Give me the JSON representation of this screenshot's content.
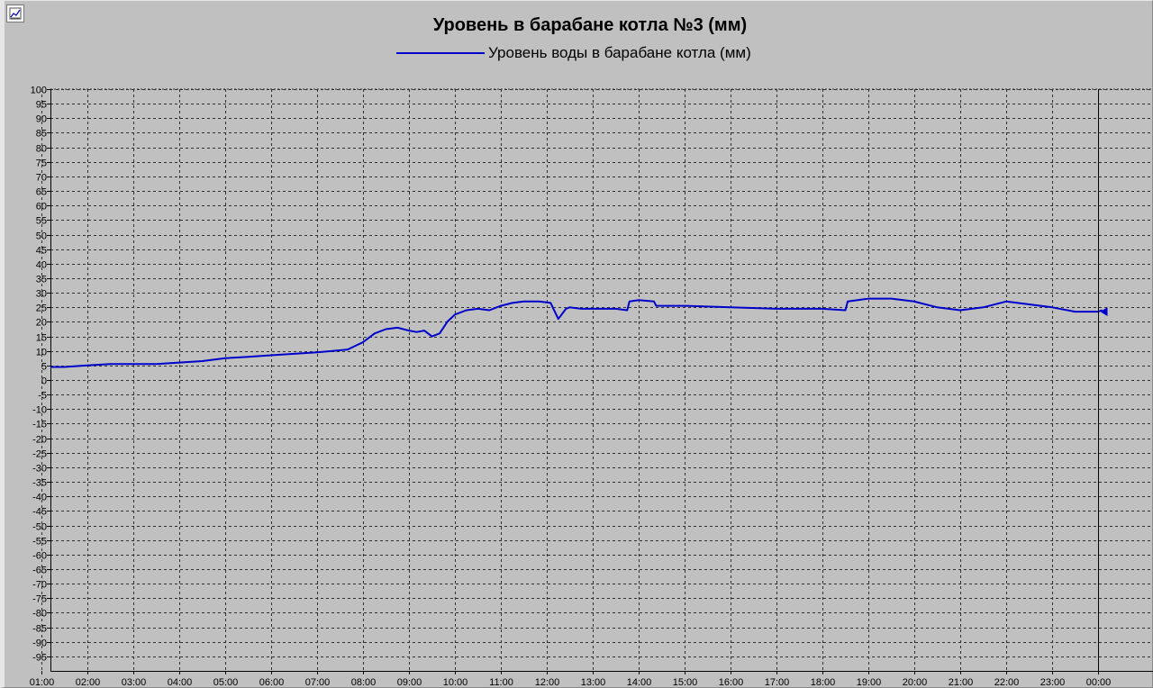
{
  "chart_data": {
    "type": "line",
    "title": "Уровень в барабане котла №3 (мм)",
    "legend": [
      "Уровень воды в барабане котла (мм)"
    ],
    "xlabel": "",
    "ylabel": "",
    "xlim": [
      "01:13",
      "01:00"
    ],
    "ylim": [
      -100,
      100
    ],
    "yticks": [
      100,
      95,
      90,
      85,
      80,
      75,
      70,
      65,
      60,
      55,
      50,
      45,
      40,
      35,
      30,
      25,
      20,
      15,
      10,
      5,
      0,
      -5,
      -10,
      -15,
      -20,
      -25,
      -30,
      -35,
      -40,
      -45,
      -50,
      -55,
      -60,
      -65,
      -70,
      -75,
      -80,
      -85,
      -90,
      -95
    ],
    "xticks": [
      "02:00",
      "03:00",
      "04:00",
      "05:00",
      "06:00",
      "07:00",
      "08:00",
      "09:00",
      "10:00",
      "11:00",
      "12:00",
      "13:00",
      "14:00",
      "15:00",
      "16:00",
      "17:00",
      "18:00",
      "19:00",
      "20:00",
      "21:00",
      "22:00",
      "23:00",
      "00:00",
      "01:00"
    ],
    "grid": true,
    "cursor_time": "00:00",
    "cursor_value": 23.5,
    "series": [
      {
        "name": "Уровень воды в барабане котла (мм)",
        "color": "#0000cc",
        "x": [
          "01:13",
          "01:30",
          "02:00",
          "02:30",
          "03:00",
          "03:30",
          "04:00",
          "04:30",
          "05:00",
          "05:30",
          "06:00",
          "06:30",
          "07:00",
          "07:20",
          "07:40",
          "08:00",
          "08:15",
          "08:30",
          "08:45",
          "09:00",
          "09:10",
          "09:20",
          "09:30",
          "09:40",
          "09:50",
          "10:00",
          "10:15",
          "10:30",
          "10:45",
          "11:00",
          "11:15",
          "11:30",
          "11:50",
          "12:05",
          "12:15",
          "12:25",
          "12:30",
          "12:45",
          "13:00",
          "13:30",
          "13:45",
          "13:48",
          "14:00",
          "14:20",
          "14:23",
          "15:00",
          "16:00",
          "17:00",
          "17:30",
          "18:00",
          "18:30",
          "18:33",
          "19:00",
          "19:30",
          "20:00",
          "20:30",
          "21:00",
          "21:30",
          "22:00",
          "22:30",
          "23:00",
          "23:30",
          "00:00",
          "00:05"
        ],
        "values": [
          4.5,
          4.5,
          5,
          5.5,
          5.5,
          5.5,
          6,
          6.5,
          7.5,
          8,
          8.5,
          9,
          9.5,
          10,
          10.5,
          13,
          16,
          17.5,
          18,
          17,
          16.5,
          17,
          15,
          16,
          20,
          22.5,
          24,
          24.5,
          24,
          25.5,
          26.5,
          27,
          27,
          26.5,
          21,
          24.5,
          25,
          24.5,
          24.5,
          24.5,
          24,
          27,
          27.5,
          27,
          25.5,
          25.5,
          25,
          24.5,
          24.5,
          24.5,
          24,
          27,
          28,
          28,
          27,
          25,
          24,
          25,
          27,
          26,
          25,
          23.5,
          23.5,
          24
        ]
      }
    ]
  }
}
